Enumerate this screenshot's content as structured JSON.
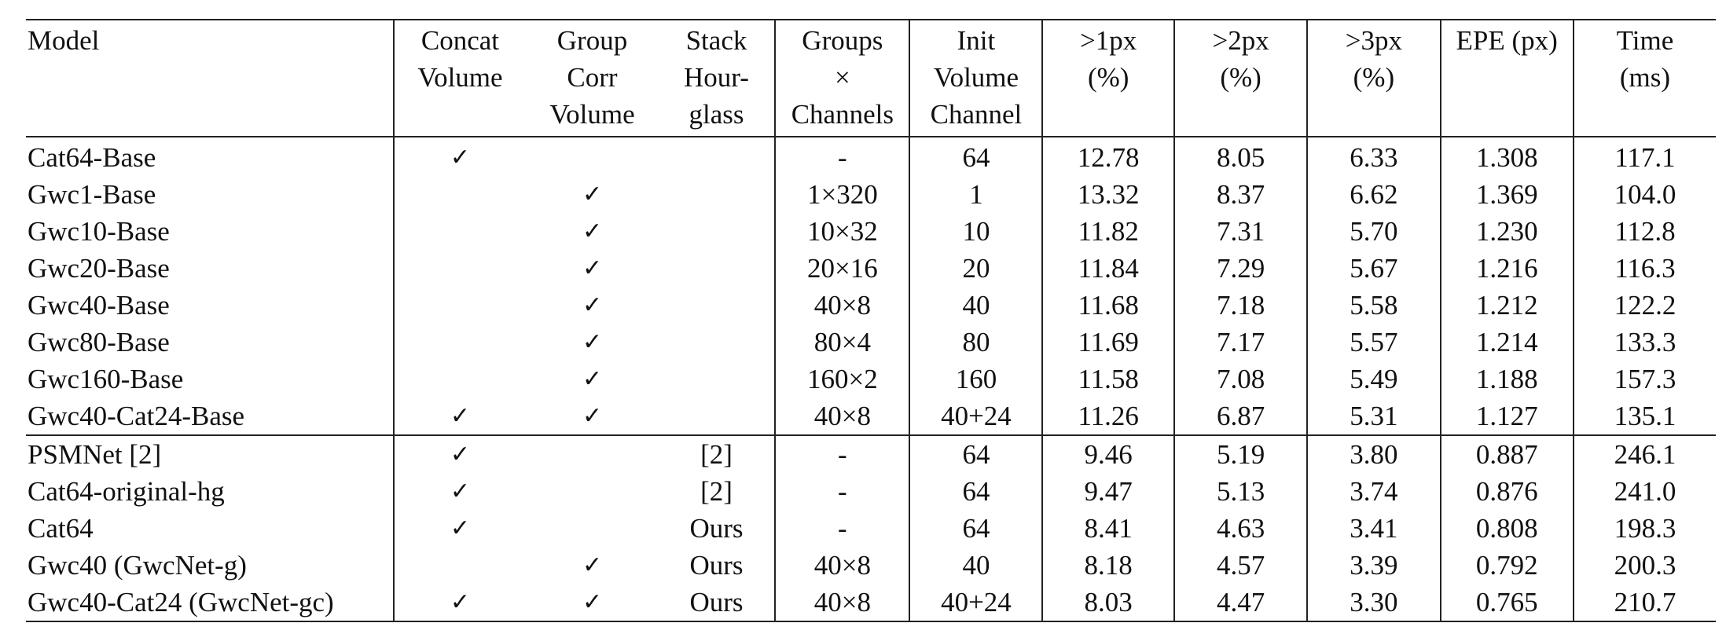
{
  "table": {
    "headers": [
      {
        "line1": "Model",
        "line2": "",
        "line3": ""
      },
      {
        "line1": "Concat",
        "line2": "Volume",
        "line3": ""
      },
      {
        "line1": "Group",
        "line2": "Corr",
        "line3": "Volume"
      },
      {
        "line1": "Stack",
        "line2": "Hour-",
        "line3": "glass"
      },
      {
        "line1": "Groups",
        "line2": "×",
        "line3": "Channels"
      },
      {
        "line1": "Init",
        "line2": "Volume",
        "line3": "Channel"
      },
      {
        "line1": ">1px",
        "line2": "(%)",
        "line3": ""
      },
      {
        "line1": ">2px",
        "line2": "(%)",
        "line3": ""
      },
      {
        "line1": ">3px",
        "line2": "(%)",
        "line3": ""
      },
      {
        "line1": "EPE (px)",
        "line2": "",
        "line3": ""
      },
      {
        "line1": "Time",
        "line2": "(ms)",
        "line3": ""
      }
    ],
    "check_mark": "✓",
    "rows": [
      {
        "model": "Cat64-Base",
        "concat": "✓",
        "gwc": "",
        "stack": "",
        "groups": "-",
        "init": "64",
        "px1": "12.78",
        "px2": "8.05",
        "px3": "6.33",
        "epe": "1.308",
        "time": "117.1"
      },
      {
        "model": "Gwc1-Base",
        "concat": "",
        "gwc": "✓",
        "stack": "",
        "groups": "1×320",
        "init": "1",
        "px1": "13.32",
        "px2": "8.37",
        "px3": "6.62",
        "epe": "1.369",
        "time": "104.0"
      },
      {
        "model": "Gwc10-Base",
        "concat": "",
        "gwc": "✓",
        "stack": "",
        "groups": "10×32",
        "init": "10",
        "px1": "11.82",
        "px2": "7.31",
        "px3": "5.70",
        "epe": "1.230",
        "time": "112.8"
      },
      {
        "model": "Gwc20-Base",
        "concat": "",
        "gwc": "✓",
        "stack": "",
        "groups": "20×16",
        "init": "20",
        "px1": "11.84",
        "px2": "7.29",
        "px3": "5.67",
        "epe": "1.216",
        "time": "116.3"
      },
      {
        "model": "Gwc40-Base",
        "concat": "",
        "gwc": "✓",
        "stack": "",
        "groups": "40×8",
        "init": "40",
        "px1": "11.68",
        "px2": "7.18",
        "px3": "5.58",
        "epe": "1.212",
        "time": "122.2"
      },
      {
        "model": "Gwc80-Base",
        "concat": "",
        "gwc": "✓",
        "stack": "",
        "groups": "80×4",
        "init": "80",
        "px1": "11.69",
        "px2": "7.17",
        "px3": "5.57",
        "epe": "1.214",
        "time": "133.3"
      },
      {
        "model": "Gwc160-Base",
        "concat": "",
        "gwc": "✓",
        "stack": "",
        "groups": "160×2",
        "init": "160",
        "px1": "11.58",
        "px2": "7.08",
        "px3": "5.49",
        "epe": "1.188",
        "time": "157.3"
      },
      {
        "model": "Gwc40-Cat24-Base",
        "concat": "✓",
        "gwc": "✓",
        "stack": "",
        "groups": "40×8",
        "init": "40+24",
        "px1": "11.26",
        "px2": "6.87",
        "px3": "5.31",
        "epe": "1.127",
        "time": "135.1"
      },
      {
        "model": "PSMNet [2]",
        "concat": "✓",
        "gwc": "",
        "stack": "[2]",
        "groups": "-",
        "init": "64",
        "px1": "9.46",
        "px2": "5.19",
        "px3": "3.80",
        "epe": "0.887",
        "time": "246.1"
      },
      {
        "model": "Cat64-original-hg",
        "concat": "✓",
        "gwc": "",
        "stack": "[2]",
        "groups": "-",
        "init": "64",
        "px1": "9.47",
        "px2": "5.13",
        "px3": "3.74",
        "epe": "0.876",
        "time": "241.0"
      },
      {
        "model": "Cat64",
        "concat": "✓",
        "gwc": "",
        "stack": "Ours",
        "groups": "-",
        "init": "64",
        "px1": "8.41",
        "px2": "4.63",
        "px3": "3.41",
        "epe": "0.808",
        "time": "198.3"
      },
      {
        "model": "Gwc40 (GwcNet-g)",
        "concat": "",
        "gwc": "✓",
        "stack": "Ours",
        "groups": "40×8",
        "init": "40",
        "px1": "8.18",
        "px2": "4.57",
        "px3": "3.39",
        "epe": "0.792",
        "time": "200.3"
      },
      {
        "model": "Gwc40-Cat24 (GwcNet-gc)",
        "concat": "✓",
        "gwc": "✓",
        "stack": "Ours",
        "groups": "40×8",
        "init": "40+24",
        "px1": "8.03",
        "px2": "4.47",
        "px3": "3.30",
        "epe": "0.765",
        "time": "210.7"
      }
    ]
  }
}
